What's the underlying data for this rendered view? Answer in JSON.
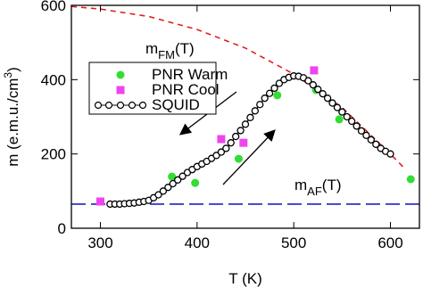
{
  "chart_data": {
    "type": "scatter",
    "x_label": "T (K)",
    "y_label": {
      "text": "m (e.m.u./cm",
      "sup": "3",
      "end": ")"
    },
    "xlim": [
      270,
      630
    ],
    "xticks": [
      300,
      400,
      500,
      600
    ],
    "ylim": [
      0,
      600
    ],
    "yticks": [
      0,
      200,
      400,
      600
    ],
    "series": [
      {
        "name": "PNR Warm",
        "color": "#33dd33",
        "marker": "circle",
        "x": [
          374,
          398,
          443,
          483,
          523,
          547,
          621
        ],
        "values": [
          139,
          122,
          187,
          358,
          372,
          293,
          132
        ]
      },
      {
        "name": "PNR Cool",
        "color": "#ee44ee",
        "marker": "square",
        "x": [
          300,
          425,
          448,
          521
        ],
        "values": [
          72,
          240,
          230,
          425
        ]
      },
      {
        "name": "SQUID",
        "color": "#000000",
        "marker": "open-circle",
        "x": [
          310,
          315,
          320,
          325,
          330,
          335,
          340,
          345,
          350,
          355,
          360,
          365,
          370,
          375,
          380,
          385,
          390,
          395,
          400,
          405,
          410,
          415,
          420,
          425,
          430,
          435,
          440,
          445,
          450,
          455,
          460,
          465,
          470,
          475,
          480,
          485,
          490,
          495,
          500,
          505,
          510,
          515,
          520,
          525,
          530,
          535,
          540,
          545,
          550,
          555,
          560,
          565,
          570,
          575,
          580,
          585,
          590,
          595,
          600
        ],
        "values": [
          65,
          65,
          65,
          66,
          67,
          68,
          70,
          72,
          75,
          82,
          90,
          100,
          110,
          120,
          130,
          140,
          150,
          158,
          166,
          173,
          180,
          188,
          196,
          205,
          215,
          230,
          247,
          263,
          280,
          298,
          316,
          333,
          350,
          363,
          377,
          390,
          400,
          406,
          410,
          409,
          405,
          397,
          386,
          374,
          362,
          350,
          337,
          325,
          313,
          300,
          288,
          275,
          262,
          250,
          238,
          226,
          215,
          207,
          200
        ]
      }
    ],
    "reference_curves": [
      {
        "color": "#e02020",
        "x": [
          270,
          300,
          350,
          400,
          450,
          500,
          550,
          600,
          615
        ],
        "values": [
          597,
          590,
          570,
          535,
          485,
          415,
          325,
          200,
          160
        ]
      },
      {
        "color": "#2020c0",
        "x": [
          270,
          630
        ],
        "values": [
          65,
          65
        ]
      }
    ],
    "annotations": [
      {
        "text": "m",
        "sub": "FM",
        "suffix": "(T)"
      },
      {
        "text": "m",
        "sub": "AF",
        "suffix": "(T)"
      }
    ]
  }
}
